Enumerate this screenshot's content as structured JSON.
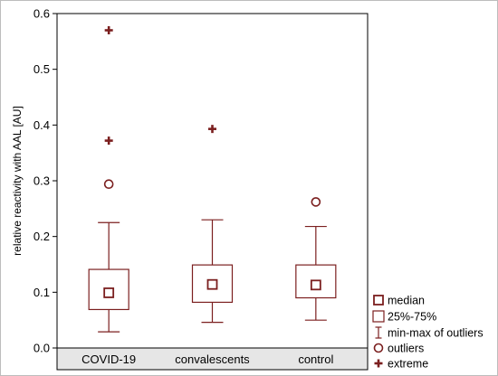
{
  "chart_data": {
    "type": "box",
    "ylabel": "relative reactivity with AAL [AU]",
    "ylim": [
      0.0,
      0.6
    ],
    "yticks": [
      "0.0",
      "0.1",
      "0.2",
      "0.3",
      "0.4",
      "0.5",
      "0.6"
    ],
    "ytick_values": [
      0.0,
      0.1,
      0.2,
      0.3,
      0.4,
      0.5,
      0.6
    ],
    "grid": false,
    "legend_position": "bottom-right",
    "color": "#7b1f1f",
    "categories": [
      "COVID-19",
      "convalescents",
      "control"
    ],
    "groups": [
      {
        "label": "COVID-19",
        "median": 0.099,
        "q1": 0.069,
        "q3": 0.141,
        "min": 0.029,
        "max": 0.225,
        "outliers": [
          0.294
        ],
        "extremes": [
          0.372,
          0.57
        ]
      },
      {
        "label": "convalescents",
        "median": 0.114,
        "q1": 0.082,
        "q3": 0.149,
        "min": 0.046,
        "max": 0.23,
        "outliers": [],
        "extremes": [
          0.393
        ]
      },
      {
        "label": "control",
        "median": 0.113,
        "q1": 0.09,
        "q3": 0.149,
        "min": 0.05,
        "max": 0.218,
        "outliers": [
          0.262
        ],
        "extremes": []
      }
    ],
    "legend": [
      {
        "symbol": "median-square",
        "label": "median"
      },
      {
        "symbol": "box",
        "label": "25%-75%"
      },
      {
        "symbol": "whisker",
        "label": "min-max of outliers"
      },
      {
        "symbol": "circle",
        "label": "outliers"
      },
      {
        "symbol": "plus",
        "label": "extreme"
      }
    ]
  }
}
